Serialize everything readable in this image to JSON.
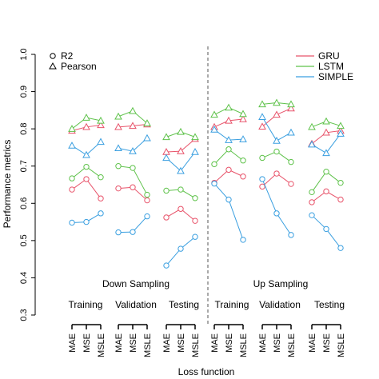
{
  "chart_data": {
    "type": "line",
    "title": "",
    "xlabel": "Loss function",
    "ylabel": "Performance metrics",
    "ylim": [
      0.3,
      1.0
    ],
    "yticks": [
      0.3,
      0.4,
      0.5,
      0.6,
      0.7,
      0.8,
      0.9,
      1.0
    ],
    "sections": [
      {
        "label": "Down Sampling",
        "groups": [
          "Training",
          "Validation",
          "Testing"
        ]
      },
      {
        "label": "Up Sampling",
        "groups": [
          "Training",
          "Validation",
          "Testing"
        ]
      }
    ],
    "loss_functions": [
      "MAE",
      "MSE",
      "MSLE"
    ],
    "metrics": [
      {
        "name": "R2",
        "marker": "circle"
      },
      {
        "name": "Pearson",
        "marker": "triangle"
      }
    ],
    "models": [
      {
        "name": "GRU",
        "color": "#e8536a"
      },
      {
        "name": "LSTM",
        "color": "#5ec24a"
      },
      {
        "name": "SIMPLE",
        "color": "#3a9fe0"
      }
    ],
    "data": {
      "GRU": {
        "R2": [
          [
            0.637,
            0.665,
            0.613
          ],
          [
            0.64,
            0.643,
            0.608
          ],
          [
            0.562,
            0.585,
            0.553
          ],
          [
            0.655,
            0.69,
            0.672
          ],
          [
            0.645,
            0.68,
            0.652
          ],
          [
            0.603,
            0.632,
            0.61
          ]
        ],
        "Pearson": [
          [
            0.795,
            0.805,
            0.81
          ],
          [
            0.805,
            0.808,
            0.812
          ],
          [
            0.738,
            0.74,
            0.773
          ],
          [
            0.805,
            0.822,
            0.826
          ],
          [
            0.806,
            0.838,
            0.855
          ],
          [
            0.76,
            0.79,
            0.795
          ]
        ]
      },
      "LSTM": {
        "R2": [
          [
            0.667,
            0.698,
            0.67
          ],
          [
            0.7,
            0.695,
            0.623
          ],
          [
            0.634,
            0.637,
            0.614
          ],
          [
            0.705,
            0.745,
            0.715
          ],
          [
            0.722,
            0.739,
            0.711
          ],
          [
            0.63,
            0.685,
            0.655
          ]
        ],
        "Pearson": [
          [
            0.8,
            0.83,
            0.822
          ],
          [
            0.833,
            0.848,
            0.815
          ],
          [
            0.778,
            0.792,
            0.778
          ],
          [
            0.838,
            0.857,
            0.84
          ],
          [
            0.866,
            0.87,
            0.866
          ],
          [
            0.805,
            0.82,
            0.808
          ]
        ]
      },
      "SIMPLE": {
        "R2": [
          [
            0.548,
            0.55,
            0.573
          ],
          [
            0.522,
            0.523,
            0.565
          ],
          [
            0.433,
            0.478,
            0.51
          ],
          [
            0.653,
            0.61,
            0.502
          ],
          [
            0.665,
            0.573,
            0.515
          ],
          [
            0.568,
            0.531,
            0.48
          ]
        ],
        "Pearson": [
          [
            0.755,
            0.73,
            0.765
          ],
          [
            0.748,
            0.74,
            0.775
          ],
          [
            0.722,
            0.687,
            0.738
          ],
          [
            0.798,
            0.77,
            0.772
          ],
          [
            0.832,
            0.768,
            0.79
          ],
          [
            0.758,
            0.735,
            0.787
          ]
        ]
      }
    }
  }
}
